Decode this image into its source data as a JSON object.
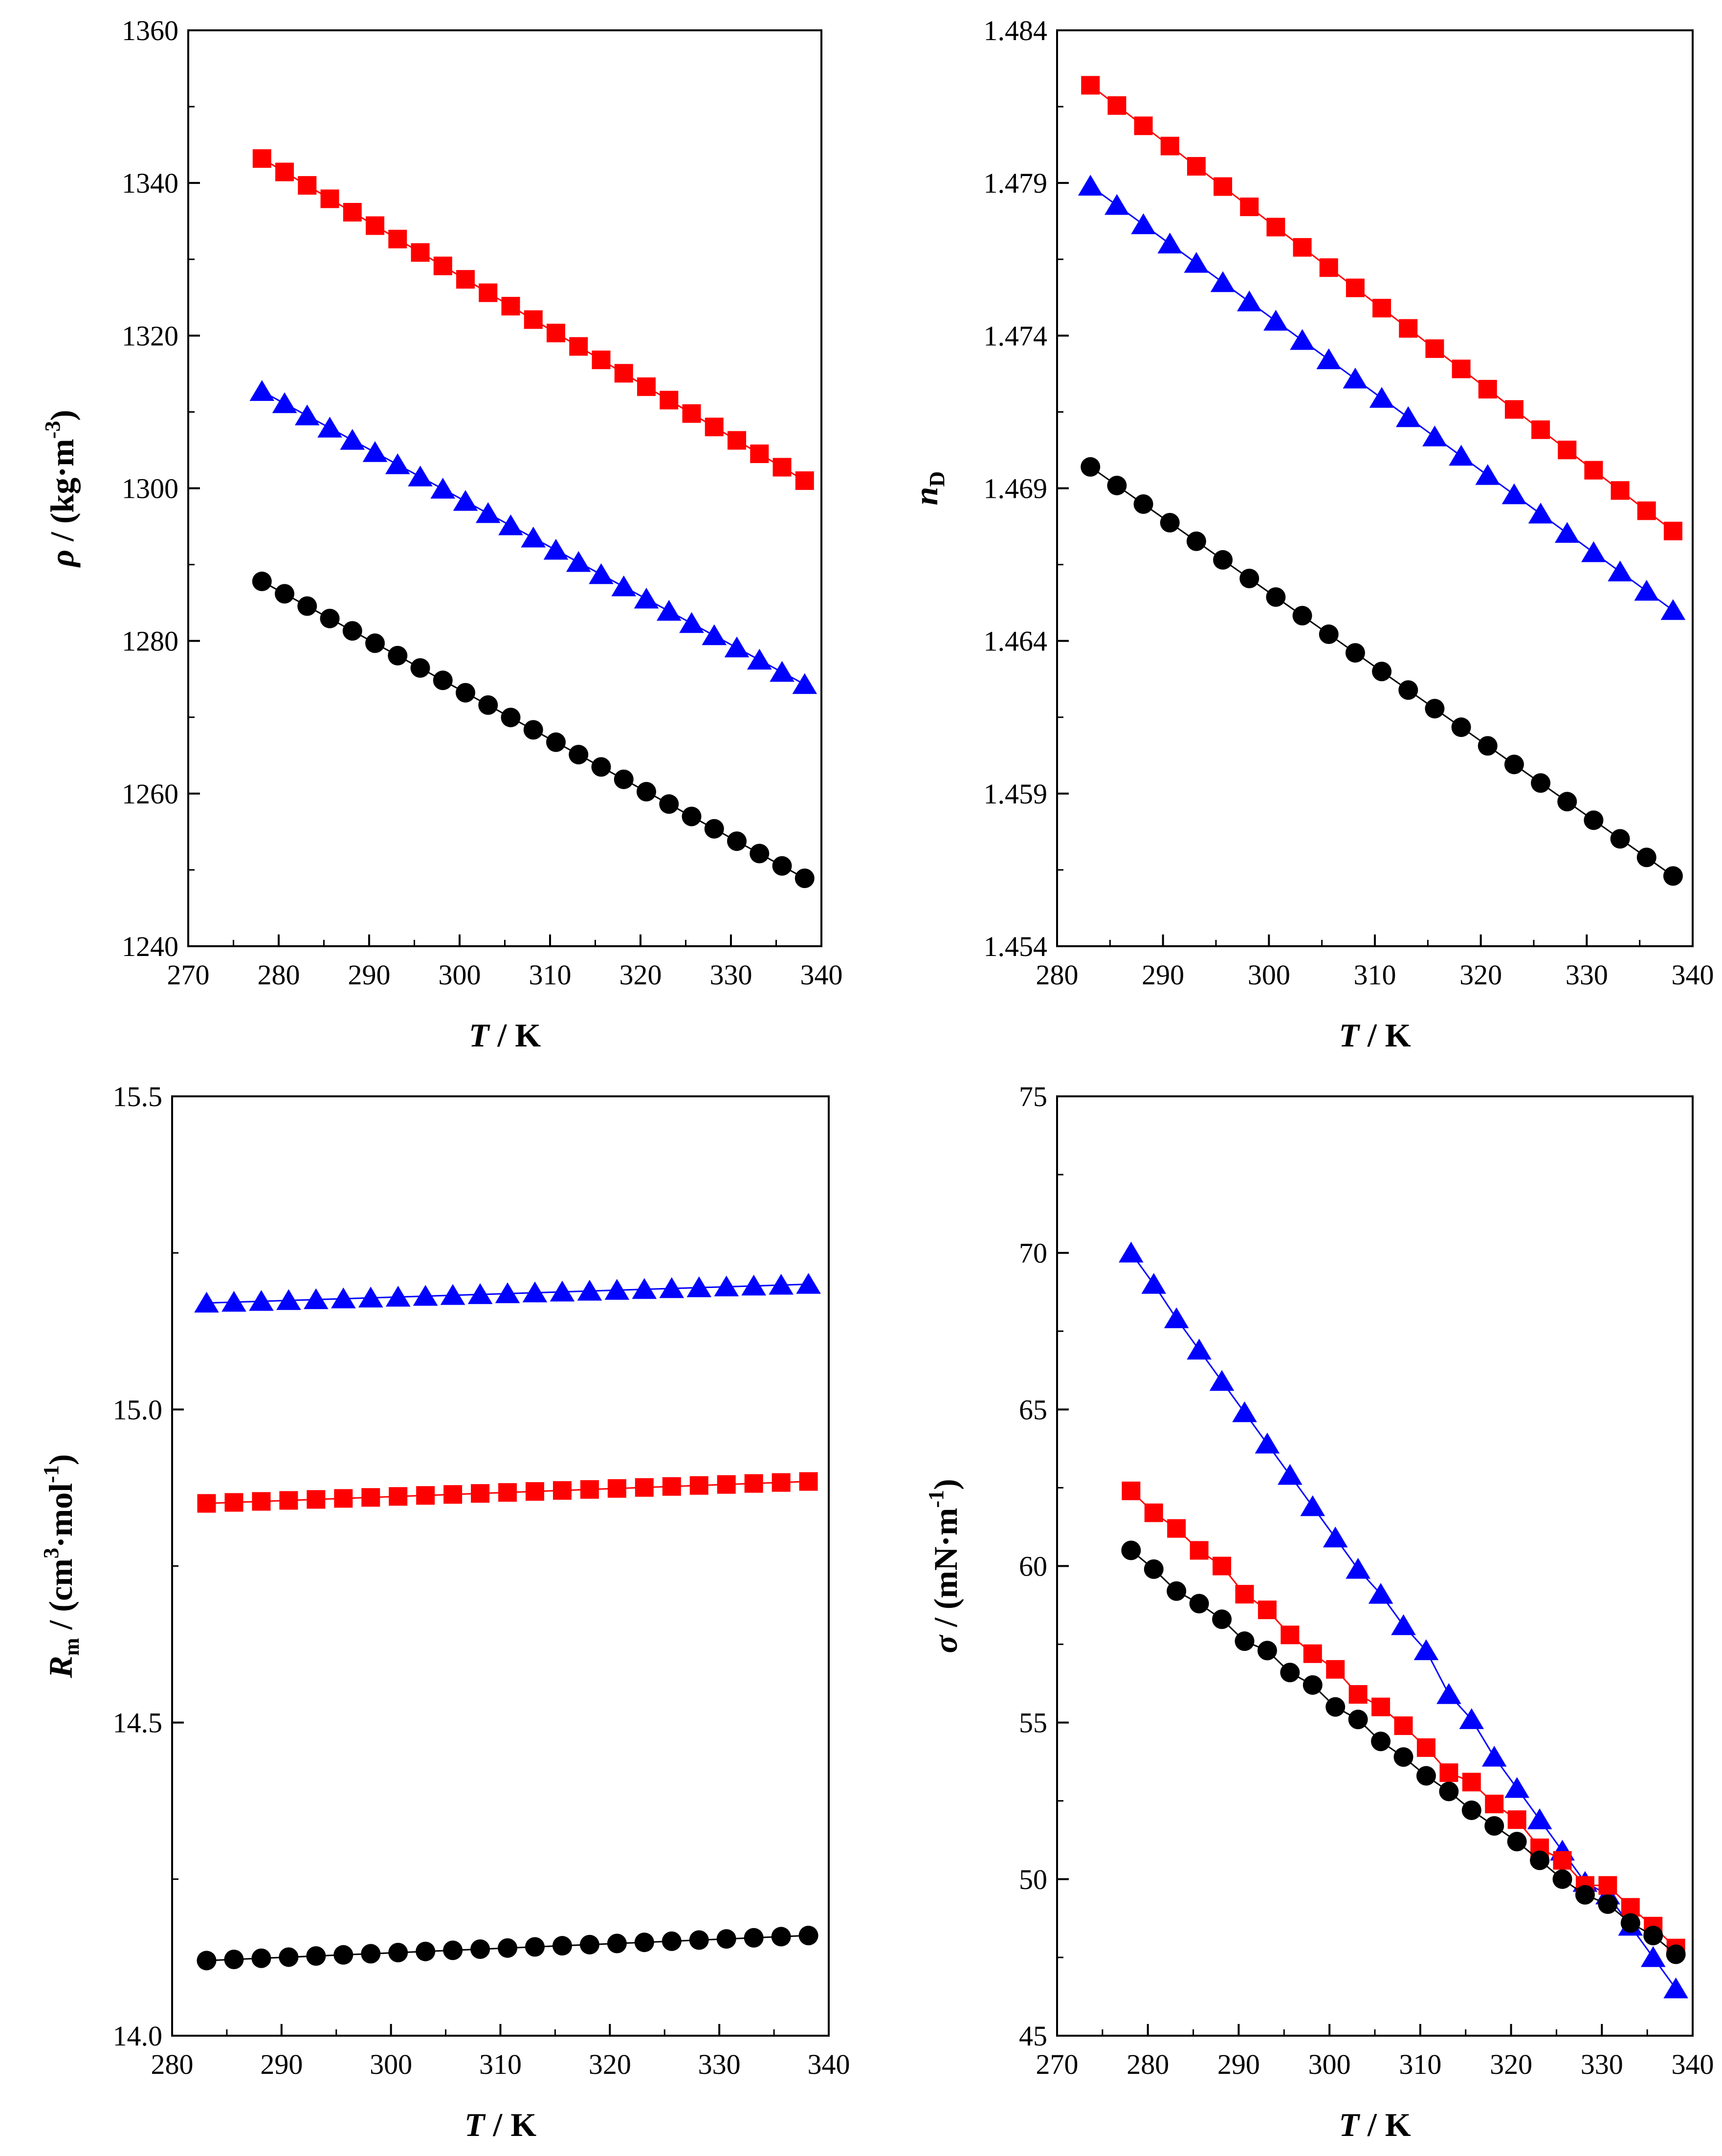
{
  "chart_data": [
    {
      "type": "scatter",
      "panel": "top-left",
      "x_axis": {
        "label_italic": "T",
        "label_rest": " / K",
        "min": 270,
        "max": 340,
        "ticks": [
          "270",
          "280",
          "290",
          "300",
          "310",
          "320",
          "330",
          "340"
        ]
      },
      "y_axis": {
        "label_italic": "ρ",
        "label_rest": " / (kg·m",
        "label_sup": "-3",
        "label_close": ")",
        "min": 1240,
        "max": 1360,
        "ticks": [
          "1240",
          "1260",
          "1280",
          "1300",
          "1320",
          "1340",
          "1360"
        ]
      },
      "x": [
        278.15,
        280.65,
        283.15,
        285.65,
        288.15,
        290.65,
        293.15,
        295.65,
        298.15,
        300.65,
        303.15,
        305.65,
        308.15,
        310.65,
        313.15,
        315.65,
        318.15,
        320.65,
        323.15,
        325.65,
        328.15,
        330.65,
        333.15,
        335.65,
        338.15
      ],
      "series": [
        {
          "color": "#ff0000",
          "marker": "square",
          "y_start": 1343.2,
          "y_end": 1301.0
        },
        {
          "color": "#0000ff",
          "marker": "triangle",
          "y_start": 1312.7,
          "y_end": 1274.3
        },
        {
          "color": "#000000",
          "marker": "circle",
          "y_start": 1287.8,
          "y_end": 1248.9
        }
      ]
    },
    {
      "type": "scatter",
      "panel": "top-right",
      "x_axis": {
        "label_italic": "T",
        "label_rest": " / K",
        "min": 280,
        "max": 340,
        "ticks": [
          "280",
          "290",
          "300",
          "310",
          "320",
          "330",
          "340"
        ]
      },
      "y_axis": {
        "label_italic": "n",
        "label_sub": "D",
        "min": 1.454,
        "max": 1.484,
        "ticks": [
          "1.454",
          "1.459",
          "1.464",
          "1.469",
          "1.474",
          "1.479",
          "1.484"
        ]
      },
      "x": [
        283.15,
        285.65,
        288.15,
        290.65,
        293.15,
        295.65,
        298.15,
        300.65,
        303.15,
        305.65,
        308.15,
        310.65,
        313.15,
        315.65,
        318.15,
        320.65,
        323.15,
        325.65,
        328.15,
        330.65,
        333.15,
        335.65,
        338.15
      ],
      "series": [
        {
          "color": "#ff0000",
          "marker": "square",
          "y_start": 1.4822,
          "y_end": 1.4676
        },
        {
          "color": "#0000ff",
          "marker": "triangle",
          "y_start": 1.4789,
          "y_end": 1.465
        },
        {
          "color": "#000000",
          "marker": "circle",
          "y_start": 1.4697,
          "y_end": 1.4563
        }
      ]
    },
    {
      "type": "scatter",
      "panel": "bottom-left",
      "x_axis": {
        "label_italic": "T",
        "label_rest": " / K",
        "min": 280,
        "max": 340,
        "ticks": [
          "280",
          "290",
          "300",
          "310",
          "320",
          "330",
          "340"
        ]
      },
      "y_axis": {
        "label_italic": "R",
        "label_sub": "m",
        "label_rest": " / (cm",
        "label_sup": "3",
        "label_mid": "·mol",
        "label_sup2": "-1",
        "label_close": ")",
        "min": 14.0,
        "max": 15.5,
        "ticks": [
          "14.0",
          "14.5",
          "15.0",
          "15.5"
        ]
      },
      "x": [
        283.15,
        285.65,
        288.15,
        290.65,
        293.15,
        295.65,
        298.15,
        300.65,
        303.15,
        305.65,
        308.15,
        310.65,
        313.15,
        315.65,
        318.15,
        320.65,
        323.15,
        325.65,
        328.15,
        330.65,
        333.15,
        335.65,
        338.15
      ],
      "series": [
        {
          "color": "#0000ff",
          "marker": "triangle",
          "y_start": 15.17,
          "y_end": 15.2
        },
        {
          "color": "#ff0000",
          "marker": "square",
          "y_start": 14.85,
          "y_end": 14.885
        },
        {
          "color": "#000000",
          "marker": "circle",
          "y_start": 14.12,
          "y_end": 14.16
        }
      ]
    },
    {
      "type": "scatter",
      "panel": "bottom-right",
      "x_axis": {
        "label_italic": "T",
        "label_rest": " / K",
        "min": 270,
        "max": 340,
        "ticks": [
          "270",
          "280",
          "290",
          "300",
          "310",
          "320",
          "330",
          "340"
        ]
      },
      "y_axis": {
        "label_italic": "σ",
        "label_rest": " / (mN·m",
        "label_sup": "-1",
        "label_close": ")",
        "min": 45,
        "max": 75,
        "ticks": [
          "45",
          "50",
          "55",
          "60",
          "65",
          "70",
          "75"
        ]
      },
      "x": [
        278.15,
        280.65,
        283.15,
        285.65,
        288.15,
        290.65,
        293.15,
        295.65,
        298.15,
        300.65,
        303.15,
        305.65,
        308.15,
        310.65,
        313.15,
        315.65,
        318.15,
        320.65,
        323.15,
        325.65,
        328.15,
        330.65,
        333.15,
        335.65,
        338.15
      ],
      "series": [
        {
          "color": "#0000ff",
          "marker": "triangle",
          "values": [
            70.0,
            69.0,
            67.9,
            66.9,
            65.9,
            64.9,
            63.9,
            62.9,
            61.9,
            60.9,
            59.9,
            59.1,
            58.1,
            57.3,
            55.9,
            55.1,
            53.9,
            52.9,
            51.9,
            50.9,
            49.9,
            49.5,
            48.5,
            47.5,
            46.5
          ]
        },
        {
          "color": "#ff0000",
          "marker": "square",
          "values": [
            62.4,
            61.7,
            61.2,
            60.5,
            60.0,
            59.1,
            58.6,
            57.8,
            57.2,
            56.7,
            55.9,
            55.5,
            54.9,
            54.2,
            53.4,
            53.1,
            52.4,
            51.9,
            51.0,
            50.6,
            49.8,
            49.8,
            49.1,
            48.5,
            47.8
          ]
        },
        {
          "color": "#000000",
          "marker": "circle",
          "values": [
            60.5,
            59.9,
            59.2,
            58.8,
            58.3,
            57.6,
            57.3,
            56.6,
            56.2,
            55.5,
            55.1,
            54.4,
            53.9,
            53.3,
            52.8,
            52.2,
            51.7,
            51.2,
            50.6,
            50.0,
            49.5,
            49.2,
            48.6,
            48.2,
            47.6
          ]
        }
      ]
    }
  ]
}
